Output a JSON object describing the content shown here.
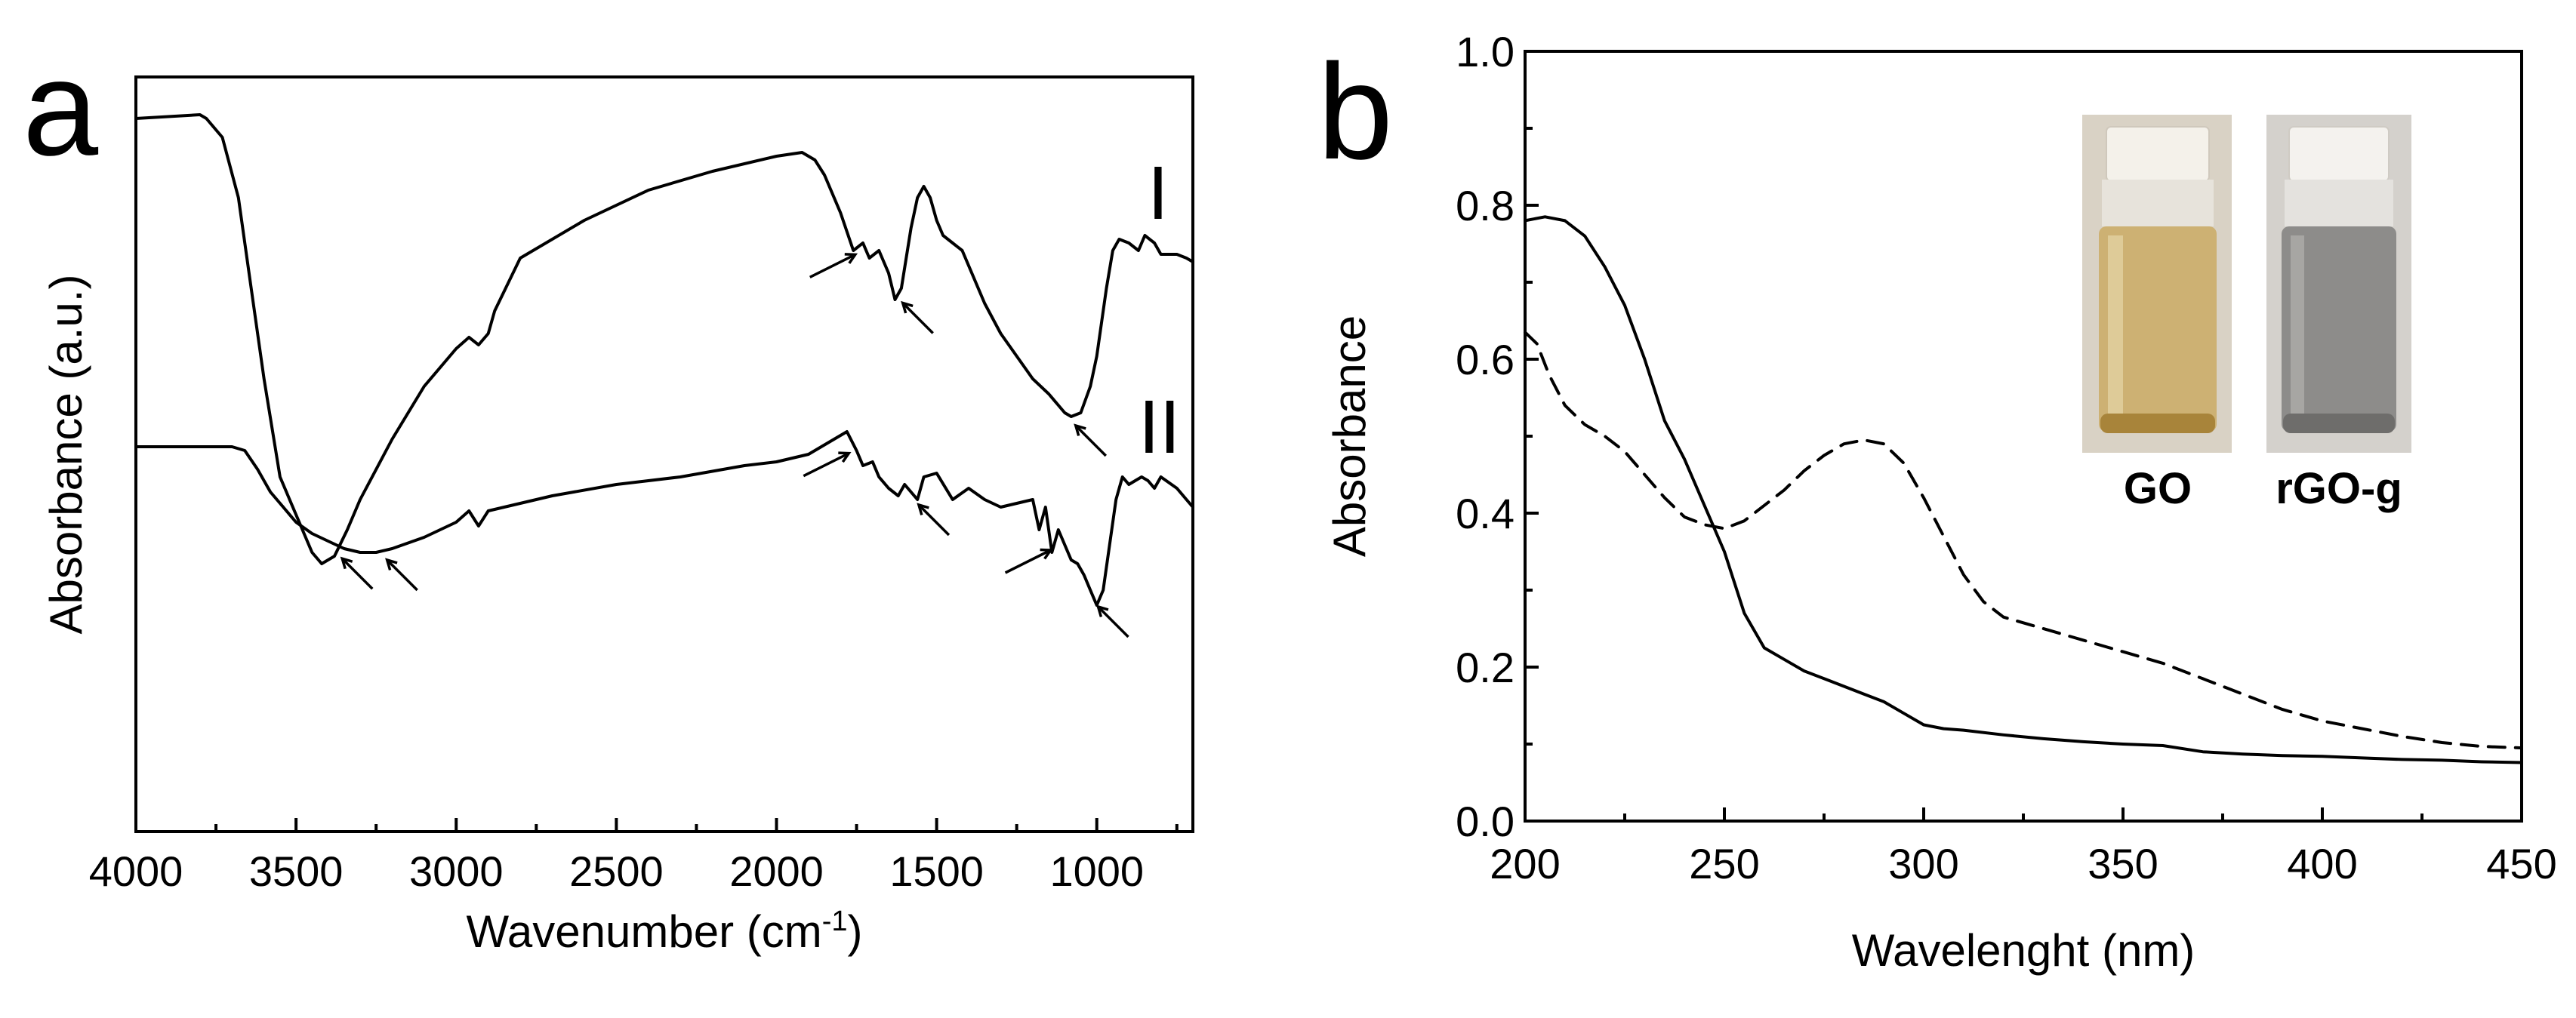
{
  "chart_data": [
    {
      "panel": "a",
      "type": "line",
      "panel_label": "a",
      "xlabel_main": "Wavenumber (cm",
      "xlabel_sup": "-1",
      "xlabel_close": ")",
      "ylabel": "Absorbance (a.u.)",
      "xlim": [
        4000,
        700
      ],
      "ylim": [
        0,
        1
      ],
      "x_ticks": [
        4000,
        3500,
        3000,
        2500,
        2000,
        1500,
        1000
      ],
      "x_tick_labels": [
        "4000",
        "3500",
        "3000",
        "2500",
        "2000",
        "1500",
        "1000"
      ],
      "y_ticks_shown": false,
      "series": [
        {
          "name": "I",
          "label": "I",
          "x": [
            4000,
            3800,
            3780,
            3730,
            3680,
            3640,
            3600,
            3550,
            3500,
            3450,
            3420,
            3380,
            3340,
            3300,
            3200,
            3100,
            3000,
            2960,
            2930,
            2900,
            2880,
            2800,
            2600,
            2400,
            2200,
            2000,
            1920,
            1880,
            1850,
            1800,
            1760,
            1730,
            1710,
            1680,
            1650,
            1630,
            1610,
            1580,
            1560,
            1540,
            1520,
            1500,
            1480,
            1450,
            1420,
            1400,
            1350,
            1300,
            1250,
            1200,
            1150,
            1100,
            1080,
            1050,
            1020,
            1000,
            970,
            950,
            930,
            900,
            870,
            850,
            820,
            800,
            750,
            720,
            700
          ],
          "y": [
            0.945,
            0.95,
            0.945,
            0.92,
            0.84,
            0.72,
            0.6,
            0.47,
            0.42,
            0.37,
            0.355,
            0.365,
            0.4,
            0.44,
            0.52,
            0.59,
            0.64,
            0.655,
            0.645,
            0.66,
            0.69,
            0.76,
            0.81,
            0.85,
            0.875,
            0.895,
            0.9,
            0.89,
            0.87,
            0.82,
            0.77,
            0.78,
            0.76,
            0.77,
            0.74,
            0.705,
            0.72,
            0.8,
            0.84,
            0.855,
            0.84,
            0.81,
            0.79,
            0.78,
            0.77,
            0.75,
            0.7,
            0.66,
            0.63,
            0.6,
            0.58,
            0.555,
            0.55,
            0.555,
            0.59,
            0.63,
            0.72,
            0.77,
            0.785,
            0.78,
            0.77,
            0.79,
            0.78,
            0.765,
            0.765,
            0.76,
            0.755
          ]
        },
        {
          "name": "II",
          "label": "II",
          "x": [
            4000,
            3800,
            3700,
            3660,
            3620,
            3580,
            3540,
            3500,
            3450,
            3400,
            3350,
            3300,
            3250,
            3200,
            3100,
            3000,
            2960,
            2930,
            2900,
            2850,
            2700,
            2500,
            2300,
            2100,
            2000,
            1900,
            1820,
            1780,
            1750,
            1730,
            1700,
            1680,
            1650,
            1620,
            1600,
            1580,
            1560,
            1540,
            1500,
            1450,
            1400,
            1350,
            1300,
            1250,
            1200,
            1180,
            1160,
            1140,
            1120,
            1100,
            1080,
            1060,
            1040,
            1020,
            1000,
            980,
            960,
            940,
            920,
            900,
            880,
            860,
            840,
            820,
            800,
            750,
            720,
            700
          ],
          "y": [
            0.51,
            0.51,
            0.51,
            0.505,
            0.48,
            0.45,
            0.43,
            0.41,
            0.395,
            0.385,
            0.375,
            0.37,
            0.37,
            0.375,
            0.39,
            0.41,
            0.425,
            0.405,
            0.425,
            0.43,
            0.445,
            0.46,
            0.47,
            0.485,
            0.49,
            0.5,
            0.52,
            0.53,
            0.505,
            0.485,
            0.49,
            0.47,
            0.455,
            0.445,
            0.46,
            0.45,
            0.44,
            0.47,
            0.475,
            0.44,
            0.455,
            0.44,
            0.43,
            0.435,
            0.44,
            0.4,
            0.43,
            0.37,
            0.4,
            0.38,
            0.36,
            0.355,
            0.34,
            0.32,
            0.3,
            0.32,
            0.38,
            0.44,
            0.47,
            0.46,
            0.465,
            0.47,
            0.465,
            0.455,
            0.47,
            0.455,
            0.44,
            0.43
          ]
        }
      ],
      "annotation_arrows_at": [
        3370,
        1740,
        1620,
        1080,
        3230,
        1760,
        1570,
        1130,
        1010
      ]
    },
    {
      "panel": "b",
      "type": "line",
      "panel_label": "b",
      "xlabel": "Wavelenght (nm)",
      "ylabel": "Absorbance",
      "xlim": [
        200,
        450
      ],
      "ylim": [
        0.0,
        1.0
      ],
      "x_ticks": [
        200,
        250,
        300,
        350,
        400,
        450
      ],
      "x_tick_labels": [
        "200",
        "250",
        "300",
        "350",
        "400",
        "450"
      ],
      "y_ticks": [
        0.0,
        0.2,
        0.4,
        0.6,
        0.8,
        1.0
      ],
      "y_tick_labels": [
        "0.0",
        "0.2",
        "0.4",
        "0.6",
        "0.8",
        "1.0"
      ],
      "series": [
        {
          "name": "rGO-g",
          "style": "solid",
          "x": [
            200,
            205,
            210,
            215,
            220,
            225,
            230,
            235,
            240,
            245,
            250,
            255,
            260,
            265,
            270,
            275,
            280,
            285,
            290,
            295,
            300,
            305,
            310,
            320,
            330,
            340,
            350,
            360,
            370,
            380,
            390,
            400,
            410,
            420,
            430,
            440,
            450
          ],
          "y": [
            0.78,
            0.785,
            0.78,
            0.76,
            0.72,
            0.67,
            0.6,
            0.52,
            0.47,
            0.41,
            0.35,
            0.27,
            0.225,
            0.21,
            0.195,
            0.185,
            0.175,
            0.165,
            0.155,
            0.14,
            0.125,
            0.12,
            0.118,
            0.112,
            0.107,
            0.103,
            0.1,
            0.098,
            0.09,
            0.087,
            0.085,
            0.084,
            0.082,
            0.08,
            0.079,
            0.077,
            0.076
          ]
        },
        {
          "name": "GO",
          "style": "dashed",
          "x": [
            200,
            203,
            206,
            210,
            215,
            220,
            225,
            230,
            235,
            240,
            245,
            250,
            255,
            260,
            265,
            270,
            275,
            280,
            285,
            290,
            295,
            300,
            305,
            310,
            315,
            320,
            330,
            340,
            350,
            360,
            370,
            380,
            390,
            400,
            410,
            420,
            430,
            440,
            450
          ],
          "y": [
            0.635,
            0.62,
            0.58,
            0.54,
            0.515,
            0.5,
            0.48,
            0.45,
            0.42,
            0.395,
            0.385,
            0.38,
            0.39,
            0.41,
            0.43,
            0.455,
            0.475,
            0.49,
            0.495,
            0.49,
            0.465,
            0.42,
            0.37,
            0.32,
            0.285,
            0.265,
            0.25,
            0.235,
            0.22,
            0.205,
            0.185,
            0.165,
            0.145,
            0.13,
            0.12,
            0.11,
            0.102,
            0.097,
            0.095
          ]
        }
      ],
      "inset_labels": [
        "GO",
        "rGO-g"
      ]
    }
  ]
}
